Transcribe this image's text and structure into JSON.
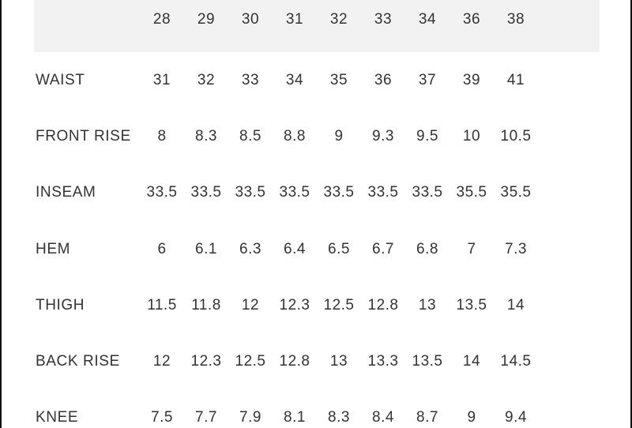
{
  "size_chart": {
    "sizes": [
      "28",
      "29",
      "30",
      "31",
      "32",
      "33",
      "34",
      "36",
      "38"
    ],
    "rows": [
      {
        "label": "WAIST",
        "values": [
          "31",
          "32",
          "33",
          "34",
          "35",
          "36",
          "37",
          "39",
          "41"
        ]
      },
      {
        "label": "FRONT RISE",
        "values": [
          "8",
          "8.3",
          "8.5",
          "8.8",
          "9",
          "9.3",
          "9.5",
          "10",
          "10.5"
        ]
      },
      {
        "label": "INSEAM",
        "values": [
          "33.5",
          "33.5",
          "33.5",
          "33.5",
          "33.5",
          "33.5",
          "33.5",
          "35.5",
          "35.5"
        ]
      },
      {
        "label": "HEM",
        "values": [
          "6",
          "6.1",
          "6.3",
          "6.4",
          "6.5",
          "6.7",
          "6.8",
          "7",
          "7.3"
        ]
      },
      {
        "label": "THIGH",
        "values": [
          "11.5",
          "11.8",
          "12",
          "12.3",
          "12.5",
          "12.8",
          "13",
          "13.5",
          "14"
        ]
      },
      {
        "label": "BACK RISE",
        "values": [
          "12",
          "12.3",
          "12.5",
          "12.8",
          "13",
          "13.3",
          "13.5",
          "14",
          "14.5"
        ]
      },
      {
        "label": "KNEE",
        "values": [
          "7.5",
          "7.7",
          "7.9",
          "8.1",
          "8.3",
          "8.4",
          "8.7",
          "9",
          "9.4"
        ]
      }
    ]
  },
  "colors": {
    "header_background": "#f2f2f2",
    "text": "#333333",
    "frame_border": "#111111"
  }
}
